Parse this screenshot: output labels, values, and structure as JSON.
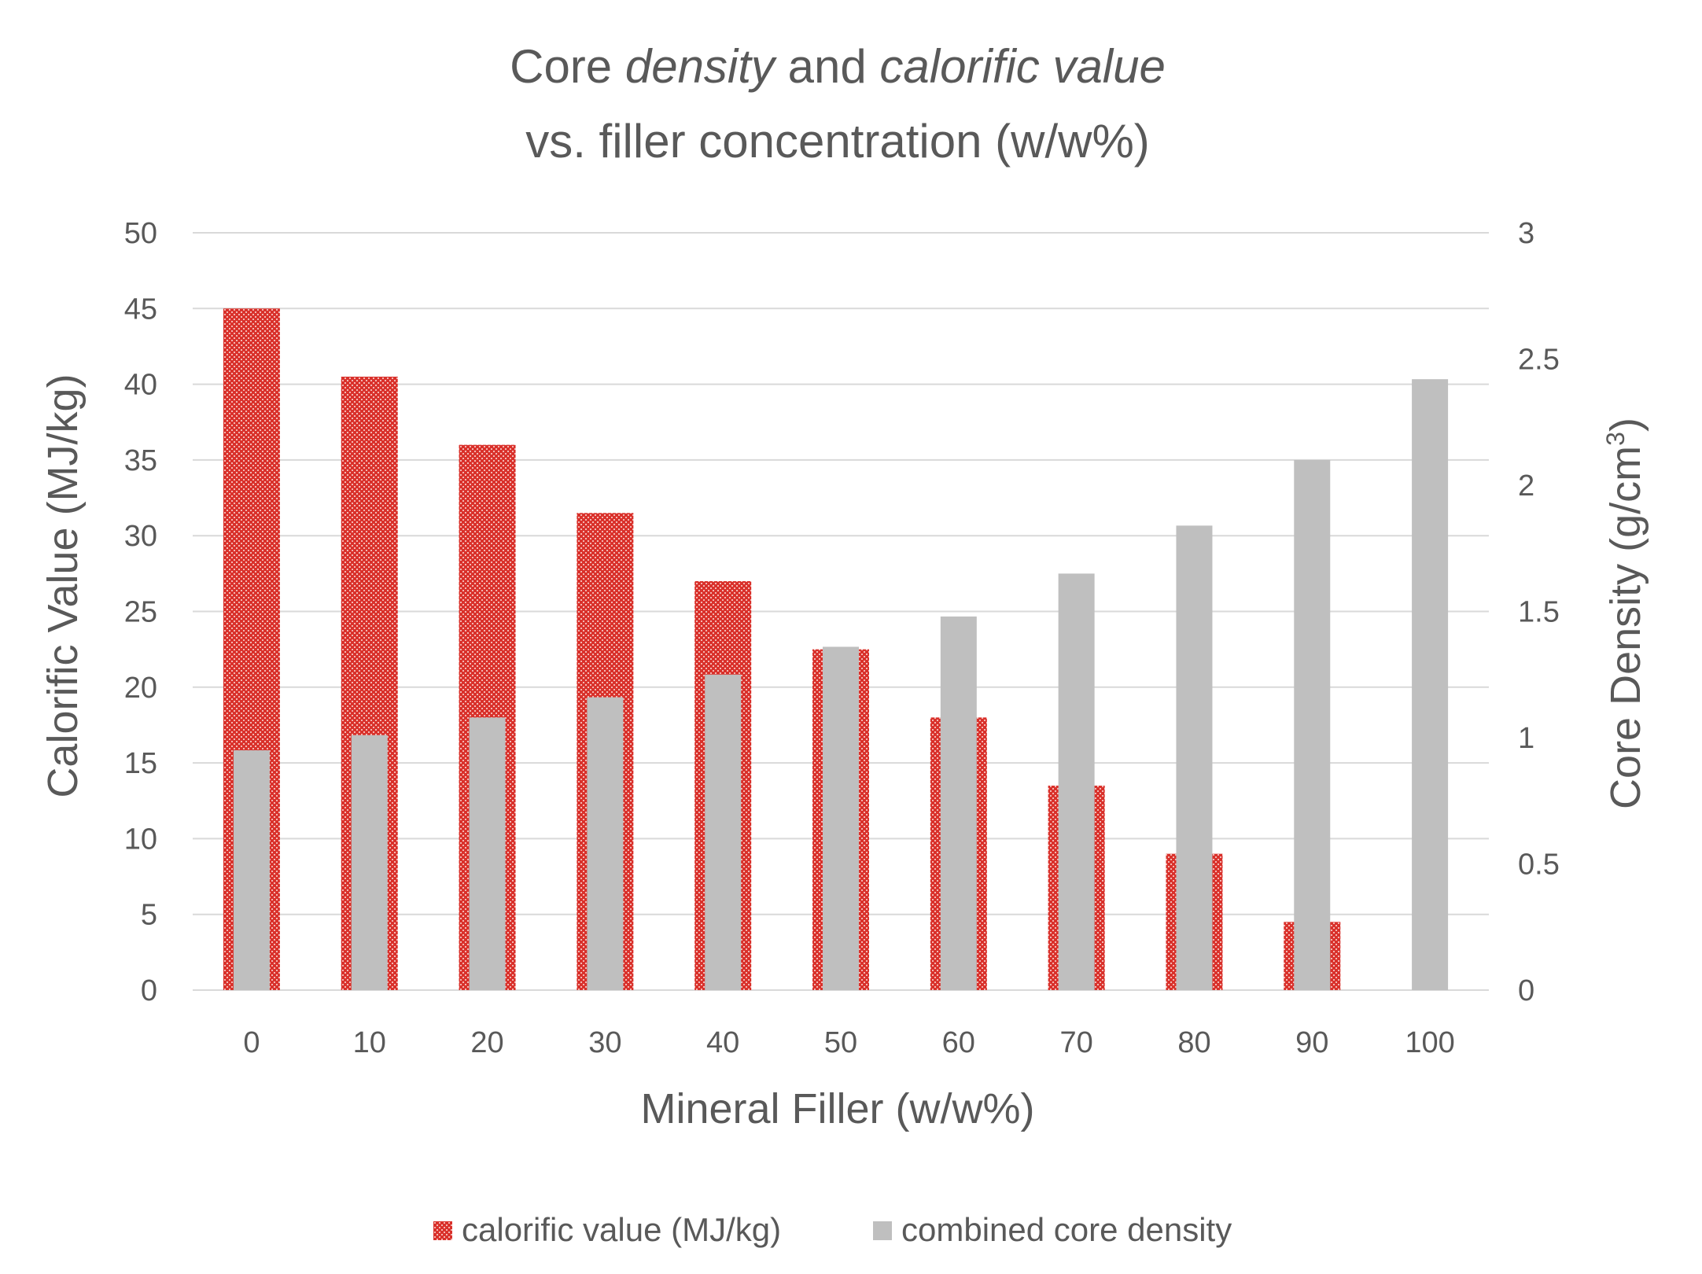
{
  "chart_data": {
    "type": "bar",
    "title_parts": [
      {
        "text": "Core ",
        "style": "normal"
      },
      {
        "text": "density",
        "style": "italic"
      },
      {
        "text": " and ",
        "style": "normal"
      },
      {
        "text": "calorific value",
        "style": "italic"
      }
    ],
    "title_line2": "vs. filler concentration (w/w%)",
    "xlabel": "Mineral Filler (w/w%)",
    "ylabel_left": "Calorific Value (MJ/kg)",
    "ylabel_right_base": "Core Density (g/cm",
    "ylabel_right_sup": "3",
    "ylabel_right_close": ")",
    "categories": [
      "0",
      "10",
      "20",
      "30",
      "40",
      "50",
      "60",
      "70",
      "80",
      "90",
      "100"
    ],
    "left_axis": {
      "min": 0,
      "max": 50,
      "step": 5,
      "ticks": [
        "0",
        "5",
        "10",
        "15",
        "20",
        "25",
        "30",
        "35",
        "40",
        "45",
        "50"
      ]
    },
    "right_axis": {
      "min": 0,
      "max": 3,
      "step": 0.5,
      "ticks": [
        "0",
        "0.5",
        "1",
        "1.5",
        "2",
        "2.5",
        "3"
      ]
    },
    "gridlines": true,
    "legend_position": "bottom",
    "series": [
      {
        "name": "calorific value (MJ/kg)",
        "axis": "left",
        "color": "#d9312b",
        "pattern": "dotted",
        "values": [
          45,
          40.5,
          36,
          31.5,
          27,
          22.5,
          18,
          13.5,
          9,
          4.5,
          0
        ]
      },
      {
        "name": "combined core density",
        "axis": "right",
        "color": "#bfbfbf",
        "pattern": "solid",
        "values": [
          0.95,
          1.01,
          1.08,
          1.16,
          1.25,
          1.36,
          1.48,
          1.65,
          1.84,
          2.1,
          2.42
        ]
      }
    ]
  }
}
